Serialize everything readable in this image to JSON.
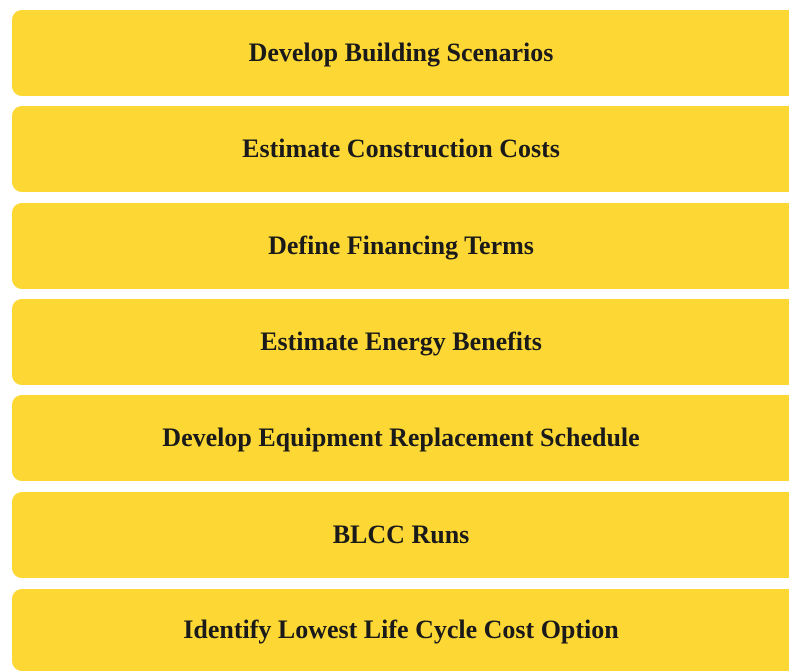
{
  "steps": [
    "Develop Building Scenarios",
    "Estimate Construction Costs",
    "Define Financing Terms",
    "Estimate Energy Benefits",
    "Develop Equipment Replacement Schedule",
    "BLCC Runs",
    "Identify Lowest Life Cycle Cost Option"
  ]
}
